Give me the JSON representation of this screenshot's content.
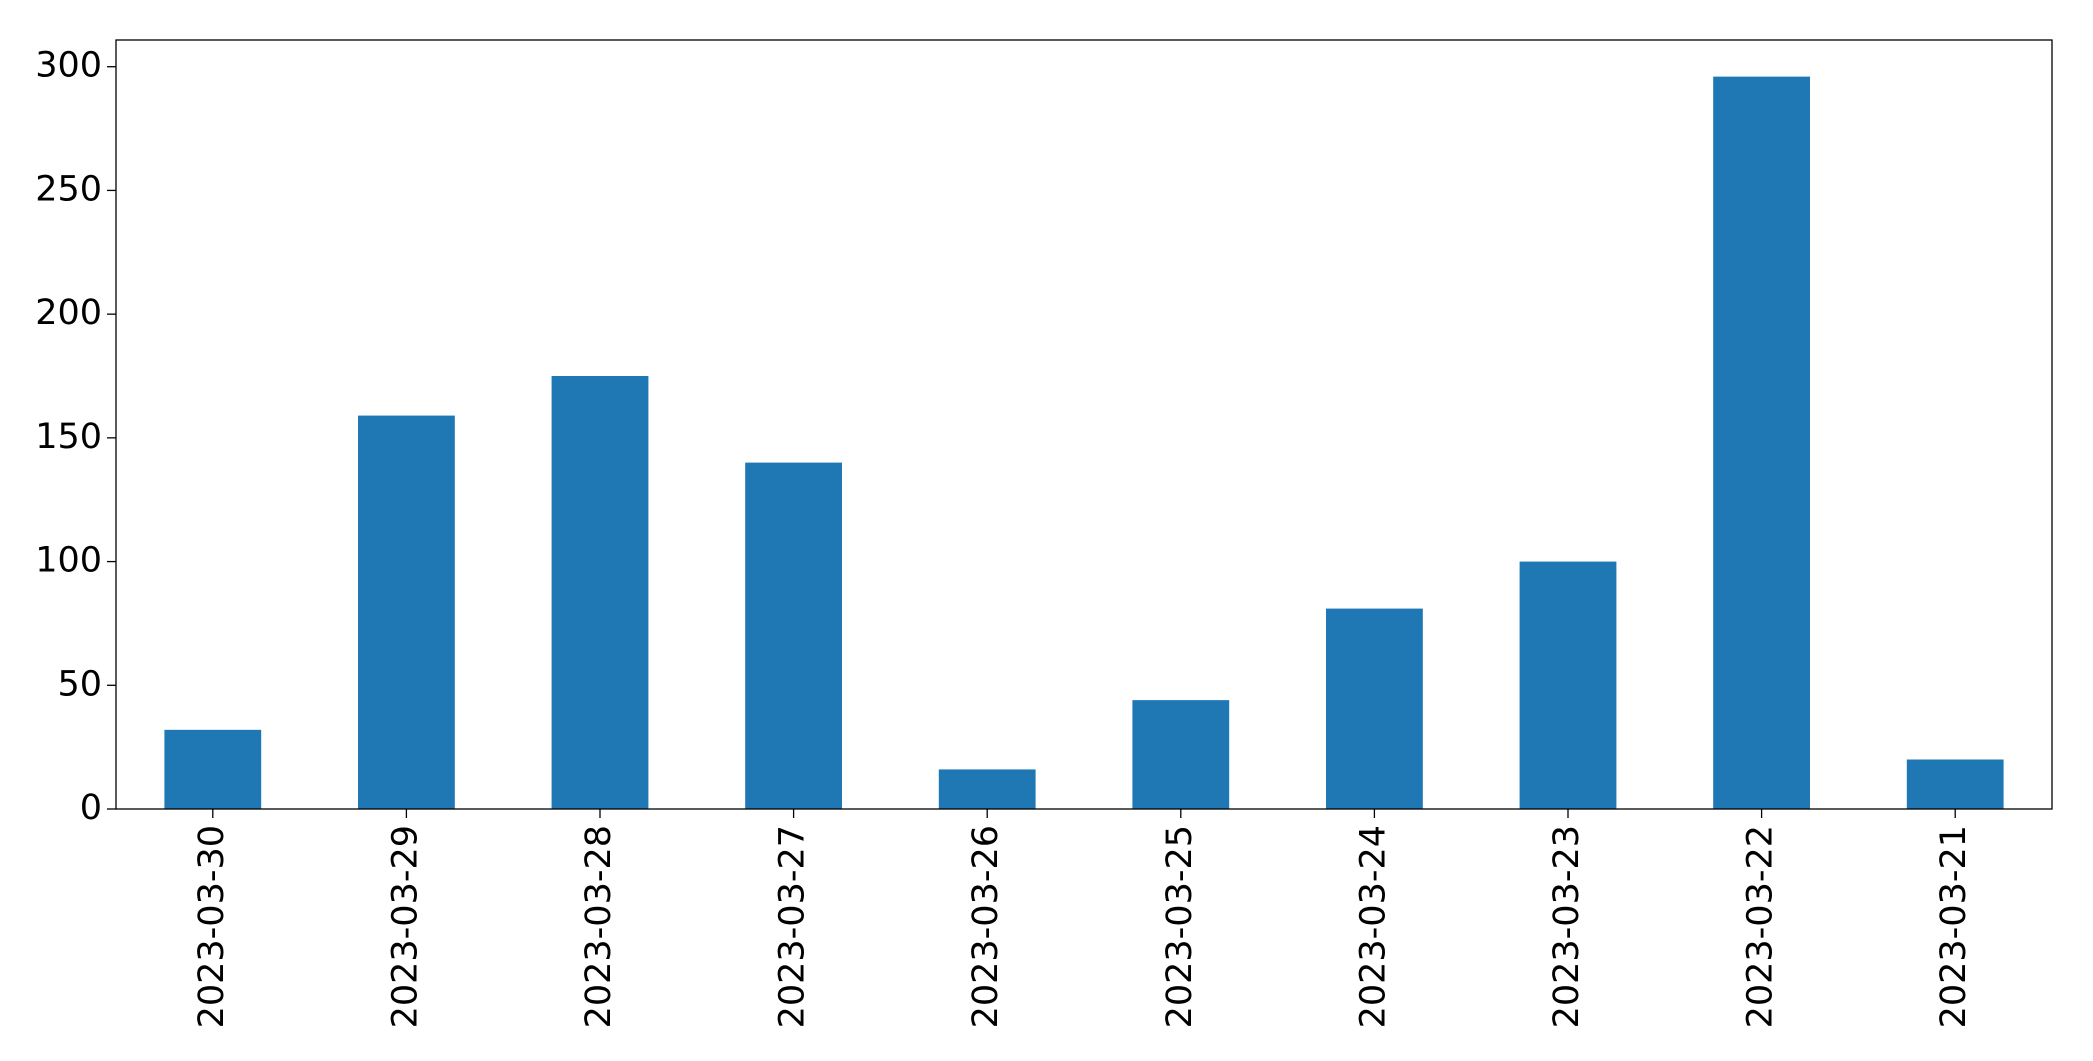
{
  "chart_data": {
    "type": "bar",
    "categories": [
      "2023-03-30",
      "2023-03-29",
      "2023-03-28",
      "2023-03-27",
      "2023-03-26",
      "2023-03-25",
      "2023-03-24",
      "2023-03-23",
      "2023-03-22",
      "2023-03-21"
    ],
    "values": [
      32,
      159,
      175,
      140,
      16,
      44,
      81,
      100,
      296,
      20
    ],
    "color": "#1f77b4",
    "ylim": [
      0,
      310.8
    ],
    "yticks": [
      0,
      50,
      100,
      150,
      200,
      250,
      300
    ],
    "grid": false
  }
}
